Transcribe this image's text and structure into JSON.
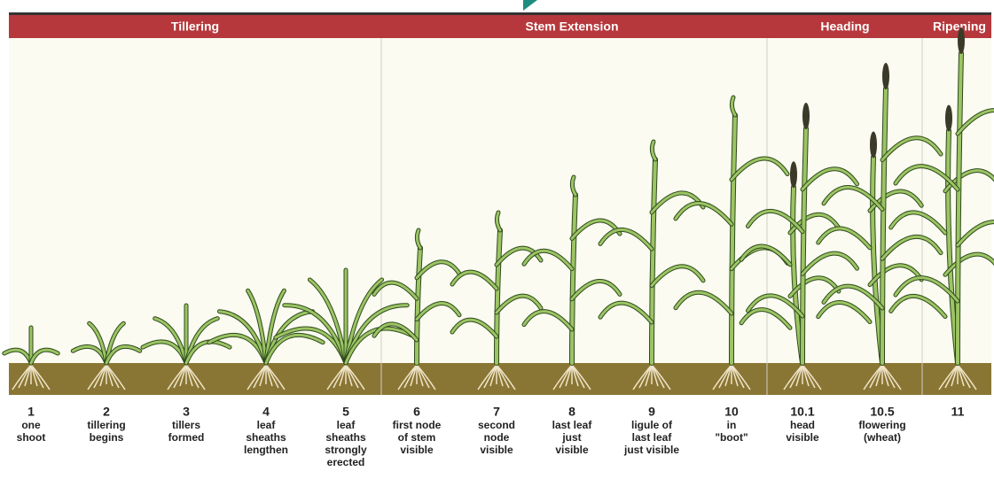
{
  "phases": [
    "Tillering",
    "Stem Extension",
    "Heading",
    "Ripening"
  ],
  "stages": [
    {
      "number": "1",
      "label": [
        "one",
        "shoot"
      ]
    },
    {
      "number": "2",
      "label": [
        "tillering",
        "begins"
      ]
    },
    {
      "number": "3",
      "label": [
        "tillers",
        "formed"
      ]
    },
    {
      "number": "4",
      "label": [
        "leaf",
        "sheaths",
        "lengthen"
      ]
    },
    {
      "number": "5",
      "label": [
        "leaf",
        "sheaths",
        "strongly",
        "erected"
      ]
    },
    {
      "number": "6",
      "label": [
        "first node",
        "of stem",
        "visible"
      ]
    },
    {
      "number": "7",
      "label": [
        "second",
        "node",
        "visible"
      ]
    },
    {
      "number": "8",
      "label": [
        "last leaf",
        "just",
        "visible"
      ]
    },
    {
      "number": "9",
      "label": [
        "ligule of",
        "last leaf",
        "just visible"
      ]
    },
    {
      "number": "10",
      "label": [
        "in",
        "\"boot\""
      ]
    },
    {
      "number": "10.1",
      "label": [
        "head",
        "visible"
      ]
    },
    {
      "number": "10.5",
      "label": [
        "flowering",
        "(wheat)"
      ]
    },
    {
      "number": "11",
      "label": []
    }
  ]
}
